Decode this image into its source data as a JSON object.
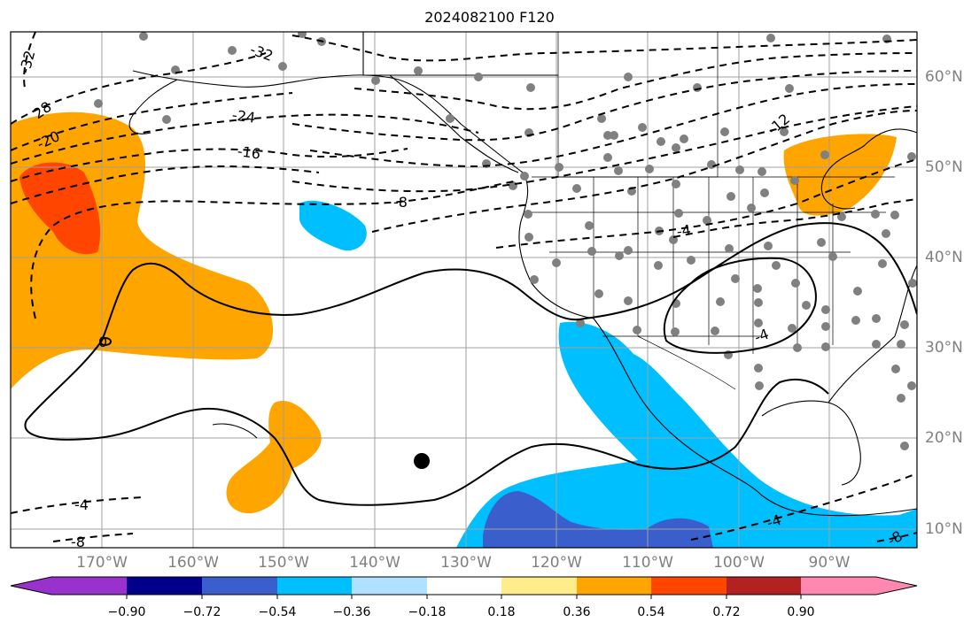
{
  "title": "2024082100 F120",
  "lat_labels": [
    "60°N",
    "50°N",
    "40°N",
    "30°N",
    "20°N",
    "10°N"
  ],
  "lon_labels": [
    "170°W",
    "160°W",
    "150°W",
    "140°W",
    "130°W",
    "120°W",
    "110°W",
    "100°W",
    "90°W"
  ],
  "contour_labels": [
    "-32",
    "28",
    "-20",
    "-32",
    "-24",
    "-16",
    "-8",
    "-4",
    "-12",
    "-4",
    "0",
    "-4",
    "-4",
    "-8",
    "-8"
  ],
  "colorbar": {
    "ticks": [
      "−0.90",
      "−0.72",
      "−0.54",
      "−0.36",
      "−0.18",
      "0.18",
      "0.36",
      "0.54",
      "0.72",
      "0.90"
    ],
    "colors": [
      "#9932cc",
      "#00008b",
      "#3a5fcd",
      "#00bfff",
      "#b0e2ff",
      "#ffffff",
      "#ffec8b",
      "#ffa500",
      "#ff4500",
      "#b22222",
      "#ff88b0"
    ]
  },
  "colors": {
    "orange": "#ffa500",
    "red_orange": "#ff4500",
    "cyan": "#00bfff",
    "royal_blue": "#3a5fcd",
    "station_dot": "#808080"
  }
}
